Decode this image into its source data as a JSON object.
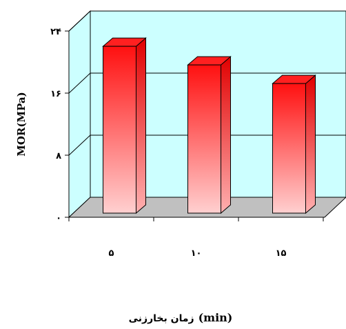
{
  "chart_data": {
    "type": "bar",
    "categories": [
      "۵",
      "۱۰",
      "۱۵"
    ],
    "values": [
      21.5,
      19.1,
      16.7
    ],
    "ylabel": "MOR(MPa)",
    "xlabel": "(min) زمان بخارزنی",
    "xlabel_parts": {
      "latin": "(min)",
      "persian": "زمان بخارزنی"
    },
    "ylim": [
      0,
      24
    ],
    "yticks": [
      0,
      8,
      16,
      24
    ],
    "ytick_labels": [
      "۰",
      "۸",
      "۱۶",
      "۲۴"
    ],
    "grid": true,
    "style": "3d",
    "colors": {
      "plot_back": "#ccffff",
      "floor": "#c0c0c0",
      "bar_top": "#ff0000",
      "bar_bottom": "#ffcccc",
      "bar_side": "#cc0000"
    }
  }
}
